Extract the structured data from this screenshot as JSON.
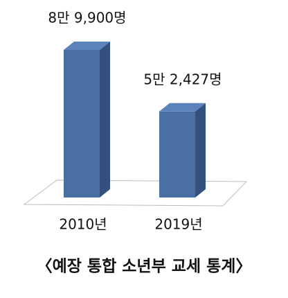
{
  "chart_data": {
    "type": "bar3d",
    "title": "〈예장 통합 소년부 교세 통계〉",
    "categories": [
      "2010년",
      "2019년"
    ],
    "values": [
      89900,
      52427
    ],
    "value_labels": [
      "8만 9,900명",
      "5만 2,427명"
    ],
    "color": "#4a6fa5"
  }
}
